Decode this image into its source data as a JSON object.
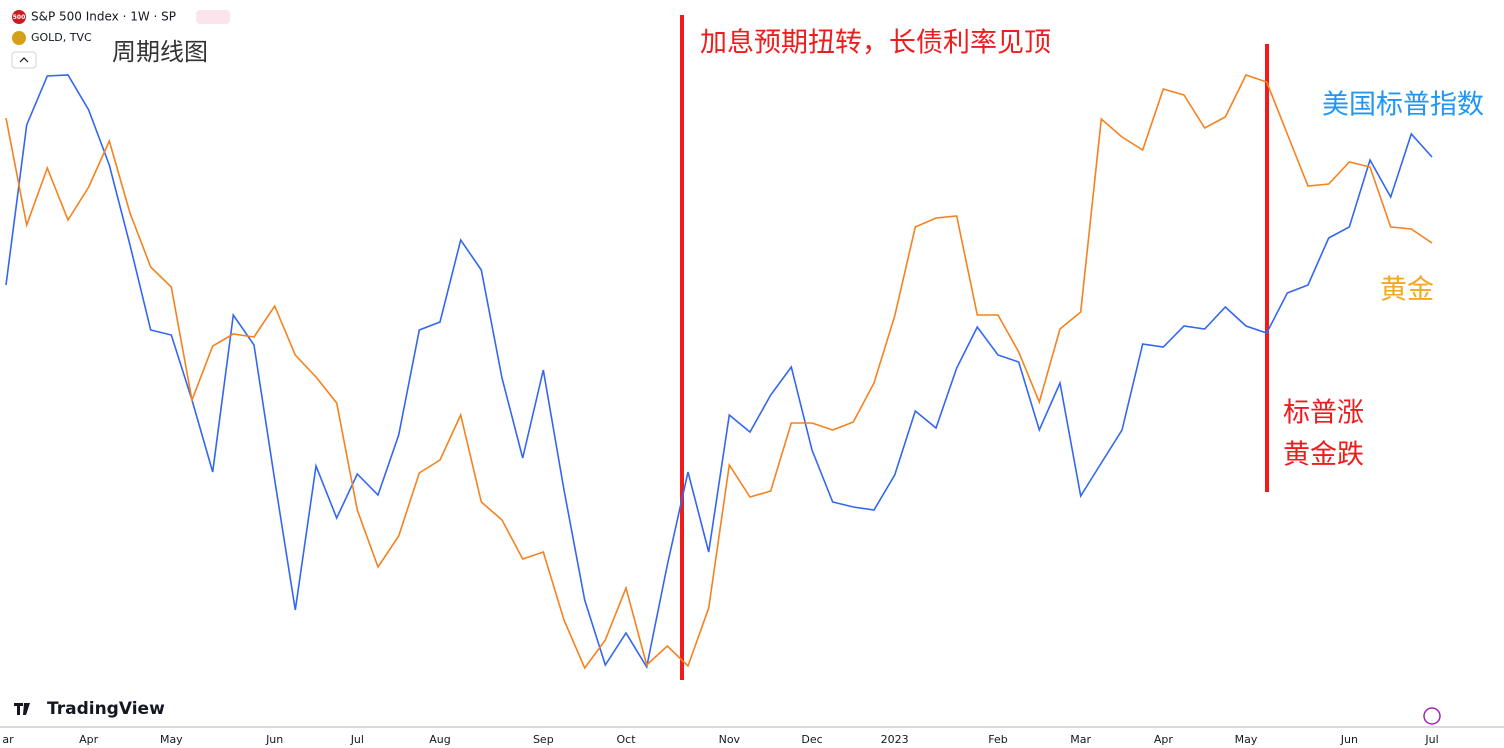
{
  "chart_data": {
    "type": "line",
    "title": "周期线图",
    "symbol_badge": "500",
    "watermark": "TradingView",
    "categories": [
      "ar",
      null,
      null,
      null,
      "Apr",
      null,
      null,
      null,
      "May",
      null,
      null,
      null,
      null,
      "Jun",
      null,
      null,
      null,
      "Jul",
      null,
      null,
      null,
      "Aug",
      null,
      null,
      null,
      null,
      "Sep",
      null,
      null,
      null,
      "Oct",
      null,
      null,
      null,
      null,
      "Nov",
      null,
      null,
      null,
      "Dec",
      null,
      null,
      null,
      "2023",
      null,
      null,
      null,
      null,
      "Feb",
      null,
      null,
      null,
      "Mar",
      null,
      null,
      null,
      "Apr",
      null,
      null,
      null,
      "May",
      null,
      null,
      null,
      null,
      "Jun",
      null,
      null,
      null,
      "Jul"
    ],
    "ylim": [
      0,
      650
    ],
    "series": [
      {
        "name": "S&P 500 Index · 1W · SP",
        "color": "#3367f0",
        "values": [
          415,
          575,
          624,
          625,
          590,
          535,
          455,
          370,
          365,
          300,
          228,
          385,
          355,
          220,
          90,
          234,
          182,
          226,
          205,
          265,
          370,
          378,
          460,
          430,
          322,
          242,
          330,
          210,
          100,
          35,
          67,
          33,
          135,
          228,
          148,
          285,
          268,
          305,
          333,
          250,
          198,
          193,
          190,
          225,
          289,
          272,
          332,
          373,
          345,
          338,
          270,
          317,
          204,
          237,
          270,
          356,
          353,
          374,
          371,
          393,
          374,
          367,
          407,
          415,
          462,
          473,
          540,
          503,
          566,
          543
        ]
      },
      {
        "name": "GOLD, TVC",
        "color": "#f5821f",
        "values": [
          582,
          475,
          532,
          480,
          513,
          559,
          487,
          433,
          413,
          300,
          354,
          366,
          363,
          394,
          345,
          323,
          297,
          190,
          133,
          164,
          227,
          240,
          285,
          198,
          180,
          141,
          148,
          80,
          32,
          60,
          112,
          35,
          54,
          34,
          92,
          235,
          203,
          209,
          277,
          277,
          270,
          278,
          317,
          384,
          473,
          482,
          484,
          385,
          385,
          348,
          298,
          371,
          388,
          581,
          563,
          550,
          611,
          605,
          572,
          583,
          625,
          618,
          566,
          514,
          516,
          538,
          533,
          473,
          471,
          457
        ]
      }
    ],
    "annotations": [
      {
        "text": "加息预期扭转，长债利率见顶",
        "color": "#f01c1c"
      },
      {
        "text": "美国标普指数",
        "color": "#2196f3"
      },
      {
        "text": "黄金",
        "color": "#f5a623"
      },
      {
        "text": "标普涨",
        "color": "#f01c1c"
      },
      {
        "text": "黄金跌",
        "color": "#f01c1c"
      }
    ]
  }
}
